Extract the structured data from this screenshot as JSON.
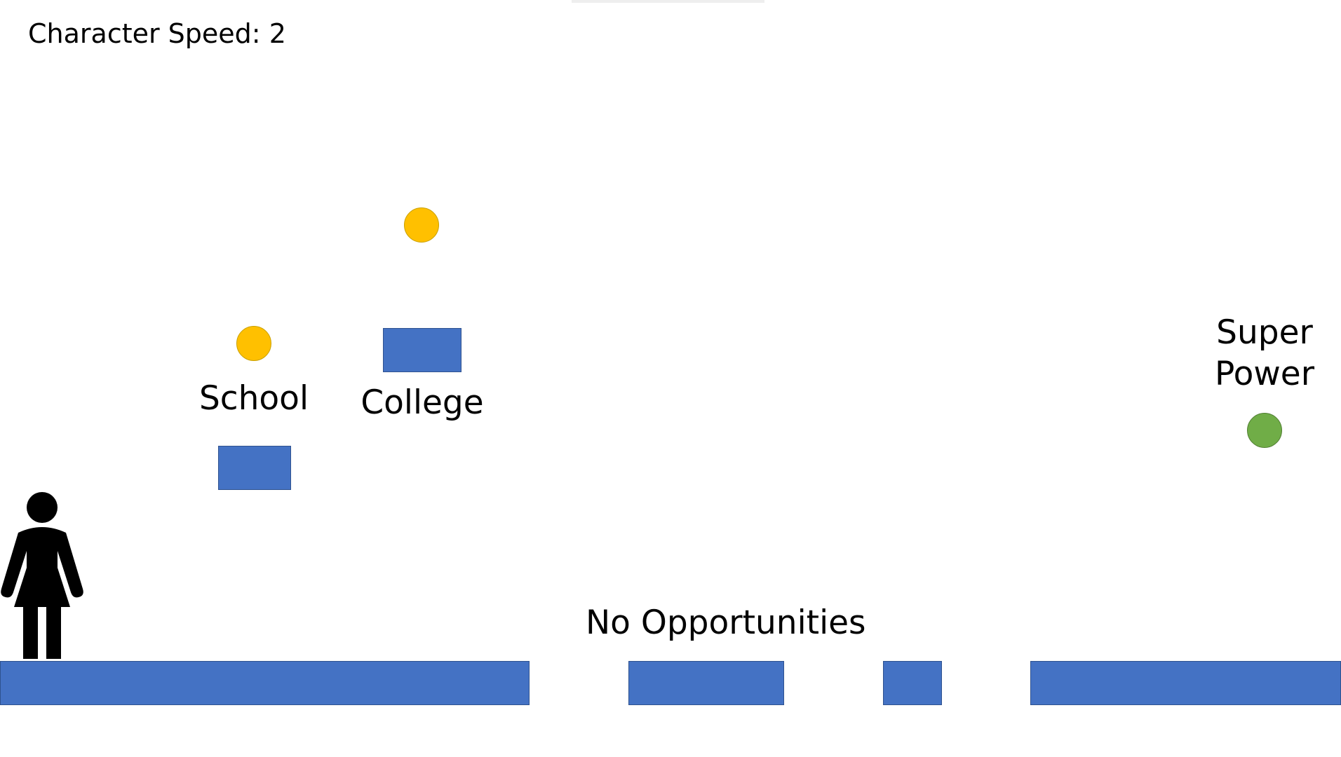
{
  "hud": {
    "speed_text": "Character Speed: 2"
  },
  "labels": {
    "school": "School",
    "college": "College",
    "super_power_line1": "Super",
    "super_power_line2": "Power",
    "no_opportunities": "No  Opportunities"
  },
  "colors": {
    "platform": "#4472c4",
    "coin": "#ffc000",
    "super_power": "#70ad47",
    "character": "#000000"
  },
  "icons": {
    "character": "woman-figure-icon",
    "collectible": "coin-icon",
    "powerup": "super-power-orb-icon"
  }
}
